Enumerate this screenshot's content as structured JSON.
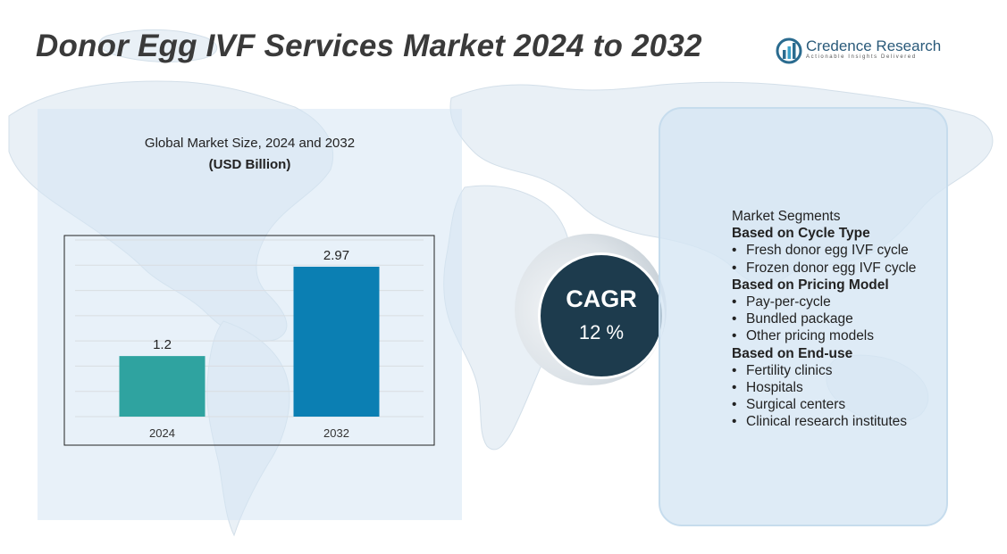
{
  "title": "Donor Egg IVF Services Market 2024 to 2032",
  "logo": {
    "name": "Credence Research",
    "tagline": "Actionable Insights Delivered"
  },
  "chart_data": {
    "type": "bar",
    "title": "Global Market Size, 2024 and 2032",
    "subtitle": "(USD Billion)",
    "categories": [
      "2024",
      "2032"
    ],
    "values": [
      1.2,
      2.97
    ],
    "data_labels": [
      "1.2",
      "2.97"
    ],
    "ylim": [
      0,
      3.5
    ],
    "grid": true,
    "colors": [
      "#2fa3a0",
      "#0b7fb3"
    ]
  },
  "cagr": {
    "label": "CAGR",
    "value": "12 %"
  },
  "segments": {
    "heading": "Market Segments",
    "groups": [
      {
        "title": "Based on Cycle Type",
        "items": [
          "Fresh donor egg IVF cycle",
          "Frozen donor egg IVF cycle"
        ]
      },
      {
        "title": "Based on Pricing Model",
        "items": [
          "Pay-per-cycle",
          "Bundled package",
          "Other pricing models"
        ]
      },
      {
        "title": "Based on End-use",
        "items": [
          "Fertility clinics",
          "Hospitals",
          "Surgical centers",
          "Clinical research institutes"
        ]
      }
    ]
  },
  "colors": {
    "title": "#3a3a3a",
    "cagr_circle": "#1d3b4d",
    "panel": "#d6e6f4"
  }
}
